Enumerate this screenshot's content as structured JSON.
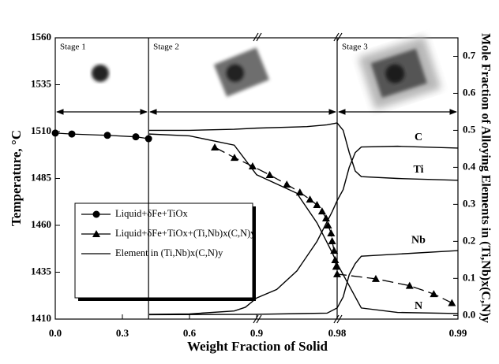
{
  "chart_data": {
    "type": "line",
    "x_label": "Weight Fraction of Solid",
    "y_label": "Temperature, °C",
    "y2_label": "Mole Fraction of Alloying Elements in (Ti,Nb)x(C,N)y",
    "xticks": [
      {
        "value": 0,
        "label": "0.0"
      },
      0.3,
      0.6,
      0.9,
      0.98,
      0.99
    ],
    "ylim": [
      1410,
      1560
    ],
    "yticks": [
      1410,
      1435,
      1460,
      1485,
      1510,
      1535,
      1560
    ],
    "y2lim": [
      -0.01,
      0.75
    ],
    "y2ticks": [
      {
        "value": 0,
        "label": "0.0"
      },
      0.1,
      0.2,
      0.3,
      0.4,
      0.5,
      0.6,
      0.7
    ],
    "stages": [
      "Stage 1",
      "Stage 2",
      "Stage 3"
    ],
    "stage_boundaries": [
      0.417,
      0.98
    ],
    "series": [
      {
        "name": "Liquid+δFe+TiOx",
        "color": "#000000",
        "marker": "circle",
        "dash": false,
        "x": [
          0,
          0.074,
          0.233,
          0.36,
          0.417
        ],
        "values": [
          1509.2,
          1508.7,
          1508,
          1507.2,
          1506.2
        ]
      },
      {
        "name": "Liquid+δFe+TiOx+(Ti,Nb)x(C,N)y",
        "color": "#000000",
        "marker": "triangle",
        "dash": true,
        "x": [
          0.713,
          0.801,
          0.882,
          0.913,
          0.93,
          0.943,
          0.953,
          0.96,
          0.965,
          0.969,
          0.971,
          0.974,
          0.975,
          0.977,
          0.978,
          0.979,
          0.98,
          0.9832,
          0.986,
          0.988,
          0.9895
        ],
        "values": [
          1501.6,
          1496.1,
          1491.5,
          1486.9,
          1481.8,
          1477.6,
          1473.8,
          1470.9,
          1467.5,
          1463.8,
          1460,
          1455.8,
          1451.6,
          1446.5,
          1441.5,
          1438,
          1434,
          1431.5,
          1427.8,
          1423.4,
          1418.6
        ]
      },
      {
        "name": "Element in (Ti,Nb)x(C,N)y",
        "color": "#000000",
        "axis": "y2",
        "curves": [
          {
            "name": "C",
            "x": [
              0.42,
              0.6,
              0.8,
              0.85,
              0.9,
              0.92,
              0.94,
              0.96,
              0.975,
              0.98,
              0.9805,
              0.981,
              0.9815,
              0.982,
              0.985,
              0.99
            ],
            "values": [
              0.003,
              0.004,
              0.012,
              0.022,
              0.047,
              0.07,
              0.12,
              0.2,
              0.28,
              0.31,
              0.34,
              0.4,
              0.44,
              0.455,
              0.457,
              0.452
            ]
          },
          {
            "name": "Ti",
            "x": [
              0.42,
              0.6,
              0.8,
              0.9,
              0.95,
              0.97,
              0.98,
              0.9805,
              0.981,
              0.9815,
              0.982,
              0.985,
              0.99
            ],
            "values": [
              0.5,
              0.5,
              0.503,
              0.506,
              0.51,
              0.515,
              0.52,
              0.5,
              0.44,
              0.39,
              0.375,
              0.37,
              0.365
            ]
          },
          {
            "name": "Nb",
            "x": [
              0.42,
              0.9,
              0.97,
              0.98,
              0.9805,
              0.981,
              0.9815,
              0.982,
              0.99
            ],
            "values": [
              0.002,
              0.003,
              0.006,
              0.02,
              0.05,
              0.11,
              0.14,
              0.16,
              0.175
            ]
          },
          {
            "name": "N",
            "x": [
              0.42,
              0.6,
              0.8,
              0.9,
              0.94,
              0.96,
              0.975,
              0.98,
              0.981,
              0.982,
              0.985,
              0.99
            ],
            "values": [
              0.49,
              0.485,
              0.46,
              0.38,
              0.33,
              0.25,
              0.17,
              0.14,
              0.08,
              0.02,
              0.008,
              0.005
            ]
          }
        ]
      }
    ]
  }
}
